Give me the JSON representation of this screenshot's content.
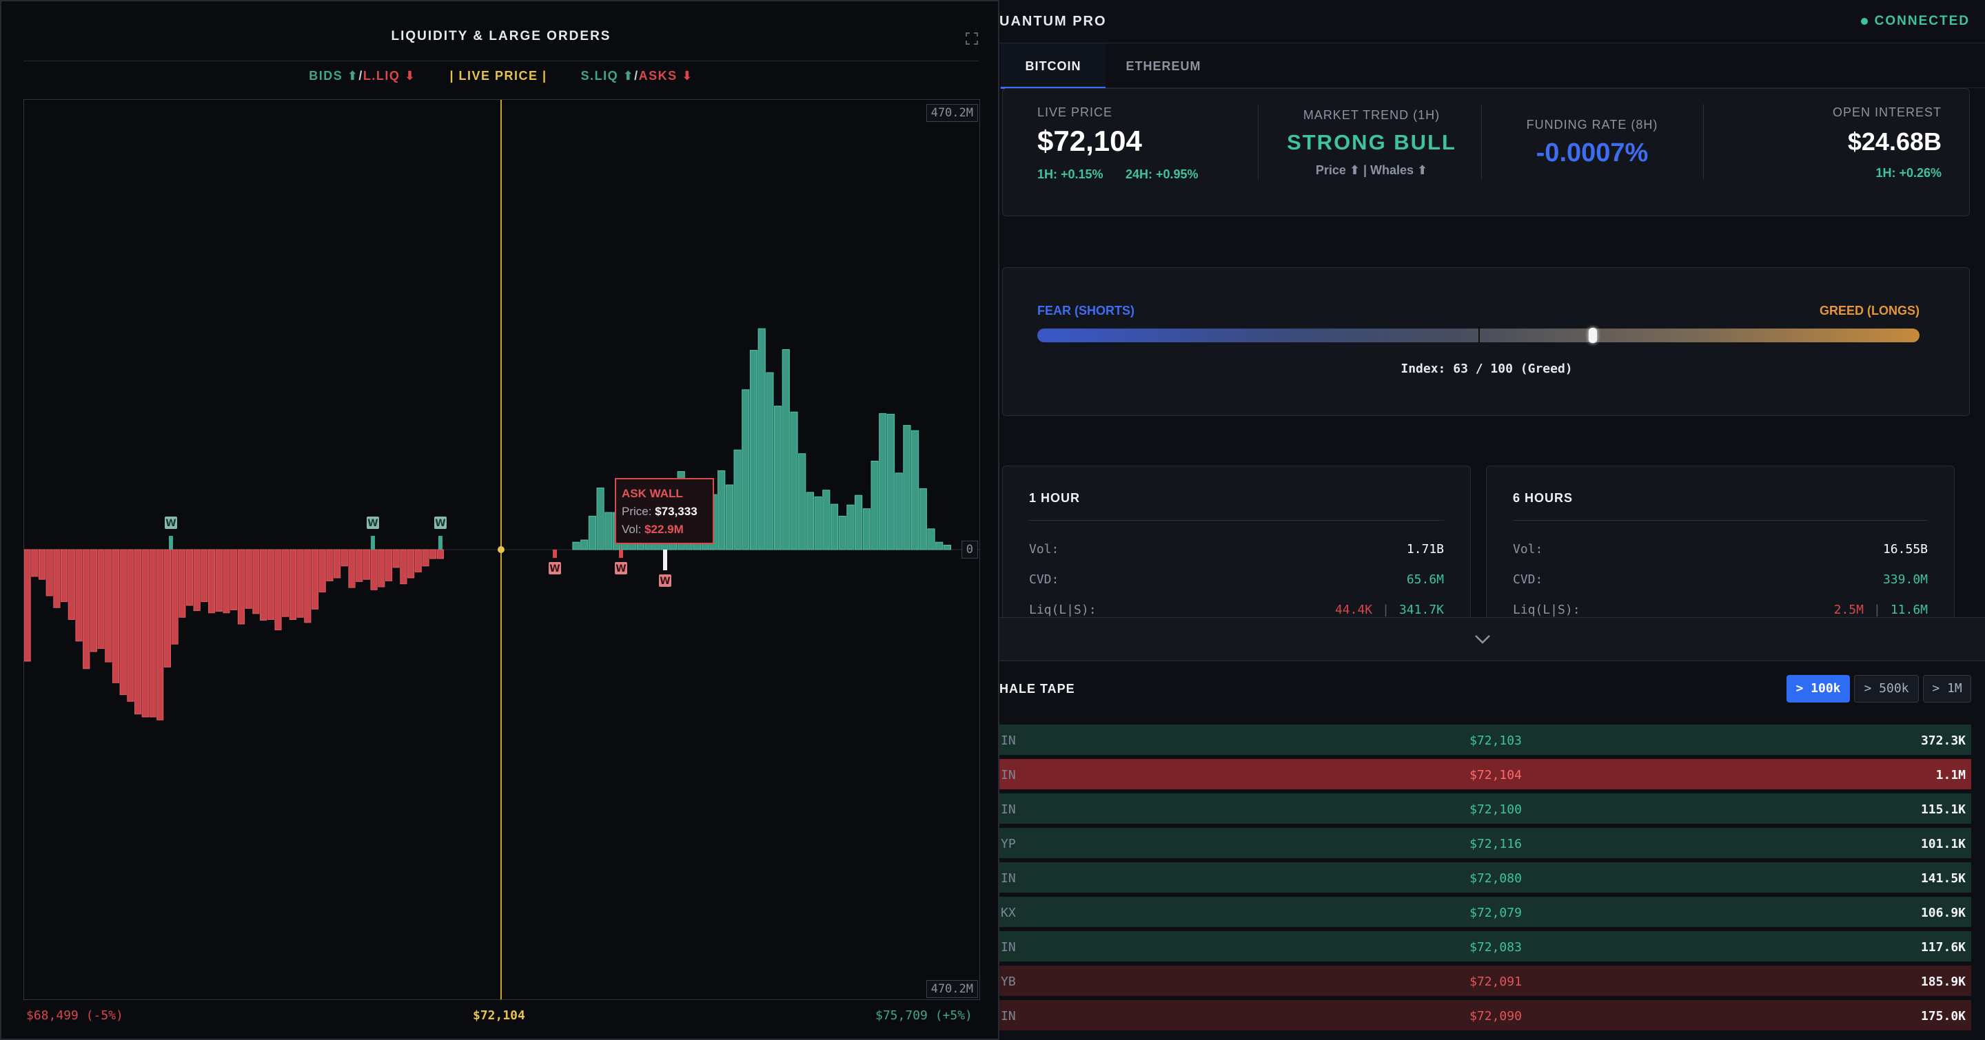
{
  "left_panel": {
    "title": "LIQUIDITY & LARGE ORDERS",
    "legend": {
      "bids": "BIDS ⬆",
      "slash1": " / ",
      "lliq": "L.LIQ ⬇",
      "live": "| LIVE PRICE |",
      "sliq": "S.LIQ ⬆",
      "slash2": " / ",
      "asks": "ASKS ⬇"
    },
    "axis_top": "470.2M",
    "axis_bottom": "470.2M",
    "axis_zero": "0",
    "footer": {
      "low": "$68,499 (-5%)",
      "mid": "$72,104",
      "high": "$75,709 (+5%)"
    },
    "tooltip": {
      "title": "ASK WALL",
      "price_label": "Price:",
      "price": "$73,333",
      "vol_label": "Vol:",
      "vol": "$22.9M"
    },
    "whale_marker": "W",
    "colors": {
      "green": "#3fa58c",
      "red": "#d7474b",
      "yellow": "#e6c34a"
    }
  },
  "chart_data": {
    "type": "bar",
    "title": "LIQUIDITY & LARGE ORDERS",
    "x_range": [
      "$68,499 (-5%)",
      "$75,709 (+5%)"
    ],
    "live_price": "$72,104",
    "ylim": [
      -470.2,
      470.2
    ],
    "ylabel_unit": "M",
    "series": [
      {
        "name": "L.LIQ",
        "side": "below",
        "values": [
          150,
          36,
          40,
          62,
          78,
          70,
          94,
          123,
          160,
          137,
          133,
          151,
          179,
          195,
          204,
          221,
          225,
          225,
          229,
          158,
          127,
          91,
          75,
          82,
          70,
          85,
          83,
          85,
          81,
          100,
          79,
          86,
          95,
          94,
          108,
          90,
          94,
          91,
          98,
          80,
          57,
          42,
          38,
          22,
          51,
          43,
          40,
          54,
          50,
          42,
          24,
          46,
          38,
          30,
          22,
          12,
          12
        ]
      },
      {
        "name": "S.LIQ / ASKS",
        "side": "above",
        "values": [
          0,
          0,
          0,
          0,
          0,
          0,
          0,
          0,
          0,
          0,
          0,
          0,
          0,
          0,
          0,
          0,
          0,
          0,
          0,
          0,
          0,
          0,
          0,
          0,
          0,
          0,
          0,
          0,
          0,
          0,
          0,
          0,
          0,
          0,
          0,
          0,
          0,
          0,
          0,
          0,
          0,
          0,
          0,
          0,
          0,
          0,
          0,
          0,
          0,
          0,
          0,
          0,
          0,
          0,
          0,
          0,
          0,
          0,
          0,
          0,
          0,
          0,
          0,
          0,
          0,
          0,
          0,
          0,
          10,
          13,
          45,
          83,
          50,
          50,
          49,
          70,
          34,
          48,
          33,
          46,
          49,
          105,
          85,
          60,
          82,
          74,
          106,
          87,
          134,
          215,
          268,
          297,
          238,
          193,
          269,
          185,
          129,
          77,
          71,
          80,
          61,
          45,
          60,
          73,
          55,
          119,
          183,
          182,
          103,
          167,
          160,
          82,
          28,
          10,
          6
        ]
      }
    ],
    "whale_markers": [
      {
        "side": "bid",
        "label": "W"
      },
      {
        "side": "bid",
        "label": "W"
      },
      {
        "side": "bid",
        "label": "W"
      },
      {
        "side": "ask",
        "label": "W"
      },
      {
        "side": "ask",
        "label": "W"
      },
      {
        "side": "ask",
        "label": "W"
      }
    ]
  },
  "right_panel": {
    "app_title": "UANTUM PRO",
    "status": "CONNECTED",
    "tabs": [
      "BITCOIN",
      "ETHEREUM"
    ],
    "stats": {
      "live_price_label": "LIVE PRICE",
      "live_price": "$72,104",
      "change_1h": "1H: +0.15%",
      "change_24h": "24H: +0.95%",
      "trend_label": "MARKET TREND (1H)",
      "trend_value": "STRONG BULL",
      "trend_sub": "Price ⬆ | Whales ⬆",
      "funding_label": "FUNDING RATE (8H)",
      "funding_value": "-0.0007%",
      "oi_label": "OPEN INTEREST",
      "oi_value": "$24.68B",
      "oi_change": "1H: +0.26%"
    },
    "sentiment": {
      "fear_label": "FEAR (SHORTS)",
      "greed_label": "GREED (LONGS)",
      "index_text": "Index: 63 / 100 (Greed)",
      "index_value": 63
    },
    "timeframes": [
      {
        "title": "1 HOUR",
        "vol_label": "Vol:",
        "vol": "1.71B",
        "cvd_label": "CVD:",
        "cvd": "65.6M",
        "liq_label": "Liq(L|S):",
        "liq_l": "44.4K",
        "liq_sep": "|",
        "liq_s": "341.7K"
      },
      {
        "title": "6 HOURS",
        "vol_label": "Vol:",
        "vol": "16.55B",
        "cvd_label": "CVD:",
        "cvd": "339.0M",
        "liq_label": "Liq(L|S):",
        "liq_l": "2.5M",
        "liq_sep": "|",
        "liq_s": "11.6M"
      }
    ],
    "tape": {
      "title": "HALE TAPE",
      "filters": [
        "> 100k",
        "> 500k",
        "> 1M"
      ],
      "rows": [
        {
          "sym": "IN",
          "price": "$72,103",
          "size": "372.3K",
          "side": "buy"
        },
        {
          "sym": "IN",
          "price": "$72,104",
          "size": "1.1M",
          "side": "sell-hl"
        },
        {
          "sym": "IN",
          "price": "$72,100",
          "size": "115.1K",
          "side": "buy"
        },
        {
          "sym": "YP",
          "price": "$72,116",
          "size": "101.1K",
          "side": "buy"
        },
        {
          "sym": "IN",
          "price": "$72,080",
          "size": "141.5K",
          "side": "buy"
        },
        {
          "sym": "KX",
          "price": "$72,079",
          "size": "106.9K",
          "side": "buy"
        },
        {
          "sym": "IN",
          "price": "$72,083",
          "size": "117.6K",
          "side": "buy"
        },
        {
          "sym": "YB",
          "price": "$72,091",
          "size": "185.9K",
          "side": "sell"
        },
        {
          "sym": "IN",
          "price": "$72,090",
          "size": "175.0K",
          "side": "sell"
        }
      ]
    }
  }
}
